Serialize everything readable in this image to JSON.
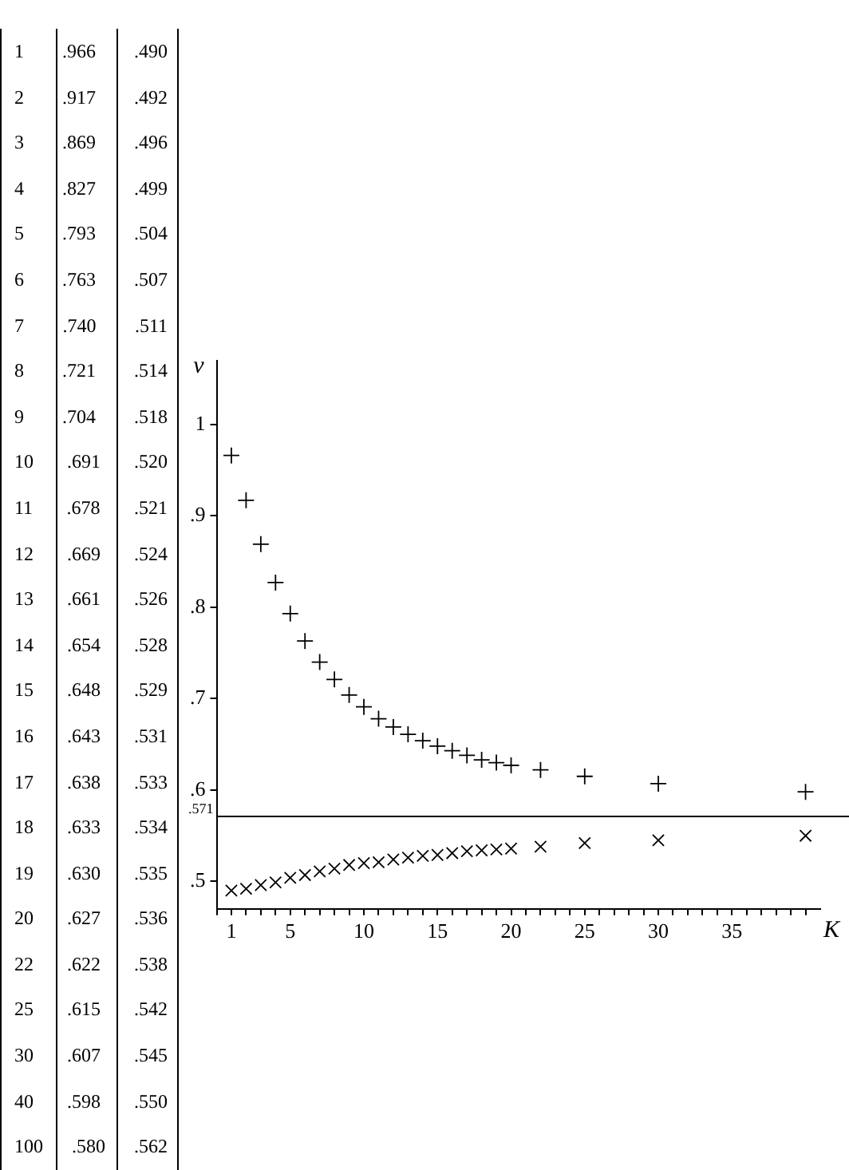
{
  "chart_data": [
    {
      "type": "other",
      "annotations": [
        "1 .966 .490",
        "2 .917 .492",
        "3 .869 .496",
        "4 .827 .499",
        "5 .793 .504",
        "6 .763 .507",
        "7 .740 .511",
        "8 .721 .514",
        "9 .704 .518",
        "10 .691 .520",
        "11 .678 .521",
        "12 .669 .524",
        "13 .661 .526",
        "14 .654 .528",
        "15 .648 .529",
        "16 .643 .531",
        "17 .638 .533",
        "18 .633 .534",
        "19 .630 .535",
        "20 .627 .536",
        "22 .622 .538",
        "25 .615 .542",
        "30 .607 .545",
        "40 .598 .550",
        "100 .580 .562"
      ]
    },
    {
      "type": "scatter",
      "xlabel": "K",
      "ylabel": "ν",
      "legend": false,
      "grid": false,
      "x": [
        1,
        2,
        3,
        4,
        5,
        6,
        7,
        8,
        9,
        10,
        11,
        12,
        13,
        14,
        15,
        16,
        17,
        18,
        19,
        20,
        22,
        25,
        30,
        40
      ],
      "series": [
        {
          "color": "#000000",
          "marker": "cross",
          "values": [
            0.966,
            0.917,
            0.869,
            0.827,
            0.793,
            0.763,
            0.74,
            0.721,
            0.704,
            0.691,
            0.678,
            0.669,
            0.661,
            0.654,
            0.648,
            0.643,
            0.638,
            0.633,
            0.63,
            0.627,
            0.622,
            0.615,
            0.607,
            0.598
          ]
        },
        {
          "color": "#000000",
          "marker": "x",
          "values": [
            0.49,
            0.492,
            0.496,
            0.499,
            0.504,
            0.507,
            0.511,
            0.514,
            0.518,
            0.52,
            0.521,
            0.524,
            0.526,
            0.528,
            0.529,
            0.531,
            0.533,
            0.534,
            0.535,
            0.536,
            0.538,
            0.542,
            0.545,
            0.55
          ]
        }
      ],
      "xlim": [
        0,
        41
      ],
      "xticks": [
        {
          "value": 0,
          "label": null
        },
        {
          "value": 1,
          "label": "1"
        },
        {
          "value": 2,
          "label": null
        },
        {
          "value": 3,
          "label": null
        },
        {
          "value": 4,
          "label": null
        },
        {
          "value": 5,
          "label": "5"
        },
        {
          "value": 6,
          "label": null
        },
        {
          "value": 7,
          "label": null
        },
        {
          "value": 8,
          "label": null
        },
        {
          "value": 9,
          "label": null
        },
        {
          "value": 10,
          "label": "10"
        },
        {
          "value": 11,
          "label": null
        },
        {
          "value": 12,
          "label": null
        },
        {
          "value": 13,
          "label": null
        },
        {
          "value": 14,
          "label": null
        },
        {
          "value": 15,
          "label": "15"
        },
        {
          "value": 16,
          "label": null
        },
        {
          "value": 17,
          "label": null
        },
        {
          "value": 18,
          "label": null
        },
        {
          "value": 19,
          "label": null
        },
        {
          "value": 20,
          "label": "20"
        },
        {
          "value": 21,
          "label": null
        },
        {
          "value": 22,
          "label": null
        },
        {
          "value": 23,
          "label": null
        },
        {
          "value": 24,
          "label": null
        },
        {
          "value": 25,
          "label": "25"
        },
        {
          "value": 26,
          "label": null
        },
        {
          "value": 27,
          "label": null
        },
        {
          "value": 28,
          "label": null
        },
        {
          "value": 29,
          "label": null
        },
        {
          "value": 30,
          "label": "30"
        },
        {
          "value": 31,
          "label": null
        },
        {
          "value": 32,
          "label": null
        },
        {
          "value": 33,
          "label": null
        },
        {
          "value": 34,
          "label": null
        },
        {
          "value": 35,
          "label": "35"
        },
        {
          "value": 36,
          "label": null
        },
        {
          "value": 37,
          "label": null
        },
        {
          "value": 38,
          "label": null
        },
        {
          "value": 39,
          "label": null
        },
        {
          "value": 40,
          "label": null
        }
      ],
      "ylim": [
        0.47,
        1.07
      ],
      "yticks": [
        {
          "value": 0.5,
          "label": ".5"
        },
        {
          "value": 0.6,
          "label": ".6"
        },
        {
          "value": 0.7,
          "label": ".7"
        },
        {
          "value": 0.8,
          "label": ".8"
        },
        {
          "value": 0.9,
          "label": ".9"
        },
        {
          "value": 1,
          "label": "1"
        }
      ],
      "ref_lines": [
        {
          "axis": "y",
          "value": 0.571,
          "label": ".571",
          "color": "#000000"
        }
      ]
    }
  ]
}
